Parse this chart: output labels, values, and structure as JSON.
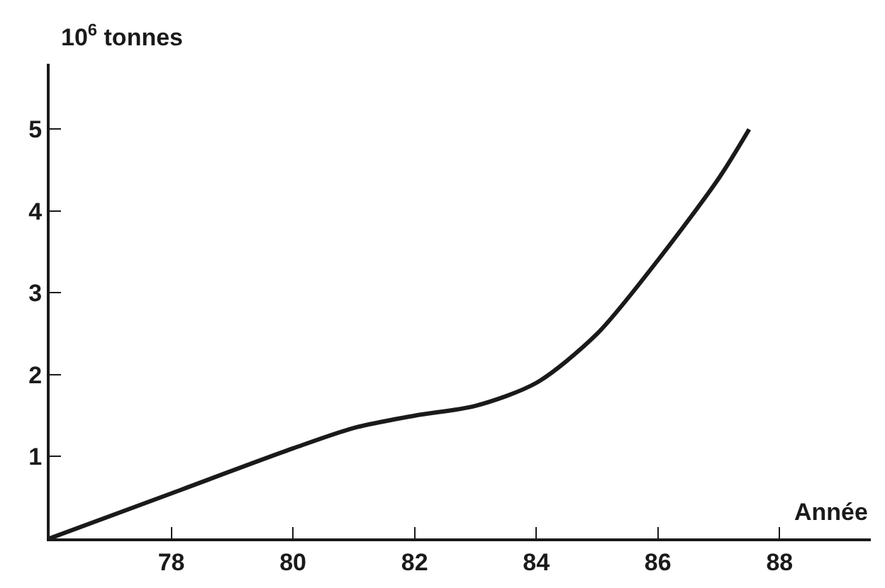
{
  "chart_data": {
    "type": "line",
    "xlabel": "Année",
    "ylabel": "10$^{6}$ tonnes",
    "x": [
      76,
      78,
      80,
      81,
      82,
      83,
      84,
      85,
      86,
      87,
      87.5
    ],
    "series": [
      {
        "color": "#1a1a1a",
        "values": [
          0,
          0.55,
          1.1,
          1.35,
          1.5,
          1.62,
          1.9,
          2.5,
          3.4,
          4.4,
          5.0
        ]
      }
    ],
    "xlim": [
      76,
      89.5
    ],
    "ylim": [
      0,
      5.8
    ],
    "xticks": [
      78,
      80,
      82,
      84,
      86,
      88
    ],
    "yticks": [
      1,
      2,
      3,
      4,
      5
    ],
    "marker": "none",
    "line_style": "solid"
  }
}
